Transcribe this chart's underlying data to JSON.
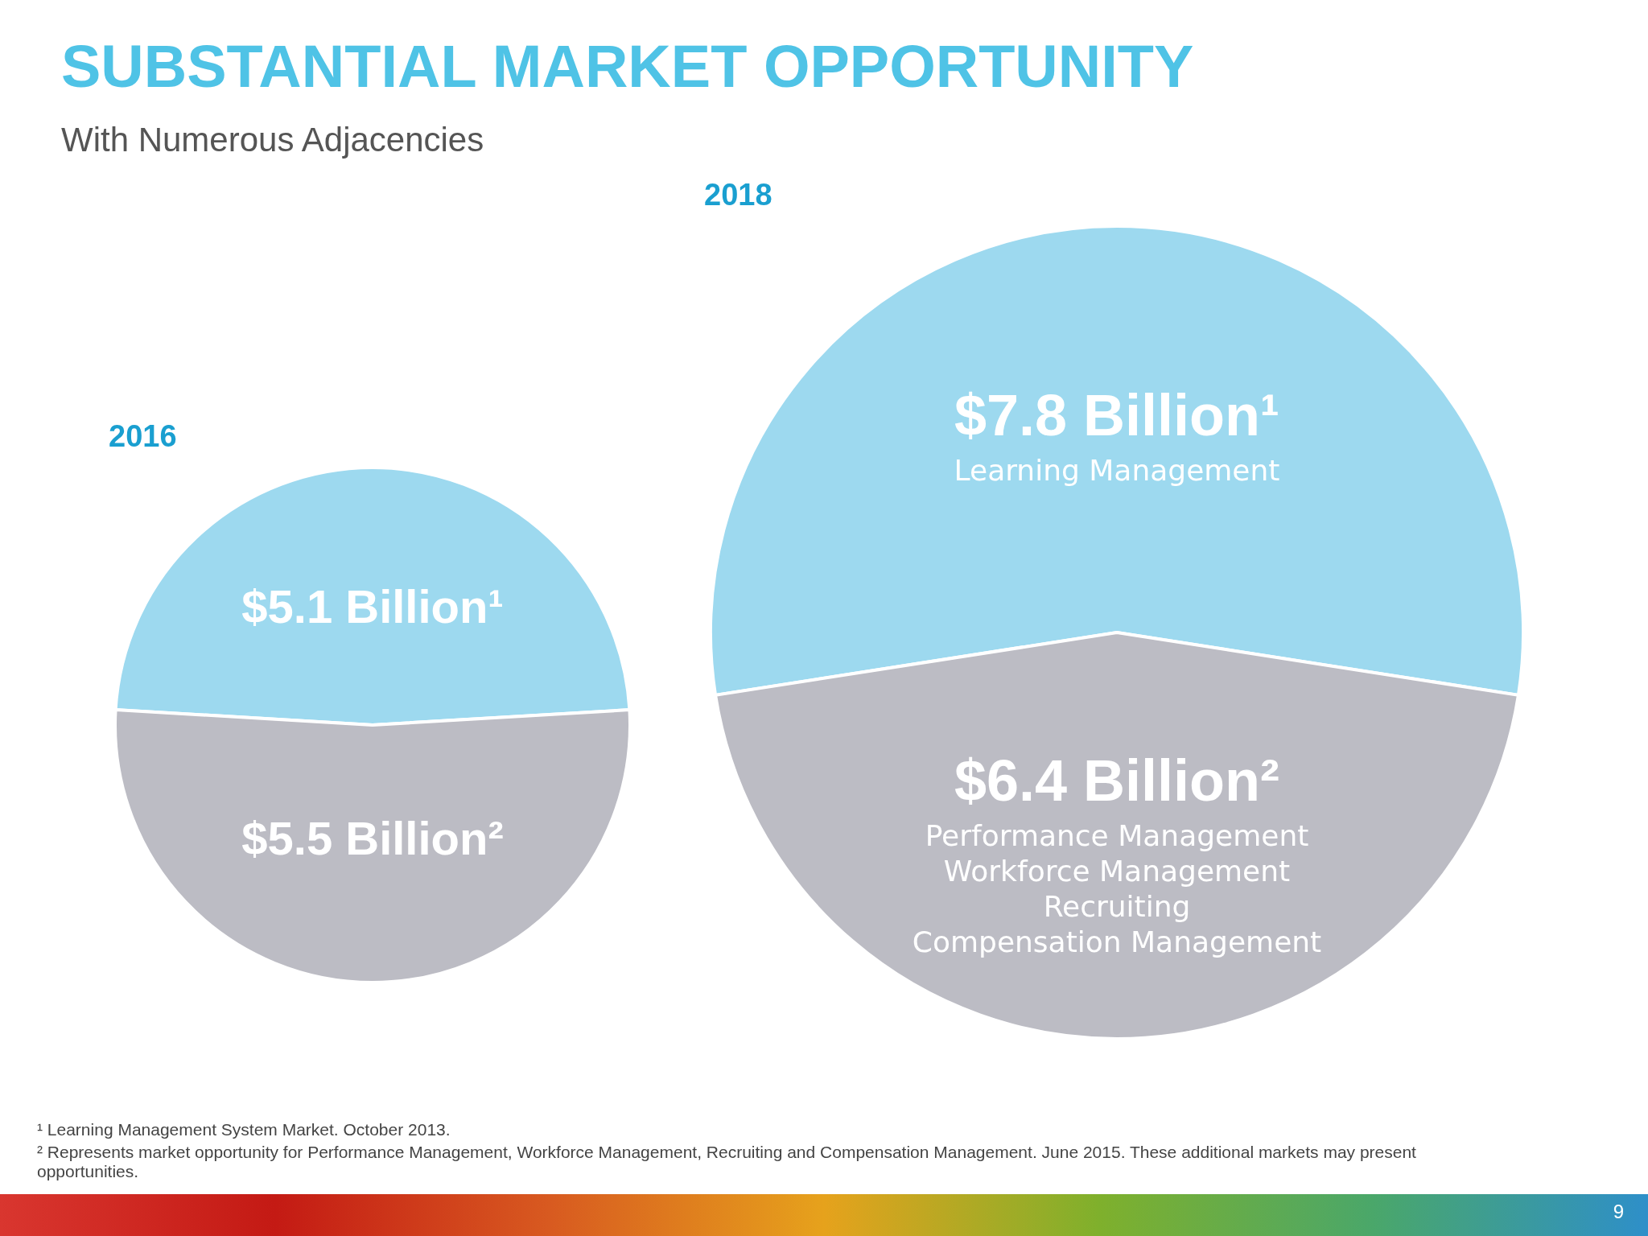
{
  "chart_data": [
    {
      "type": "other",
      "title": "SUBSTANTIAL MARKET OPPORTUNITY",
      "subtitle": "With Numerous Adjacencies",
      "annotations": [
        "¹ Learning Management System Market. October 2013.",
        "² Represents market opportunity for Performance Management, Workforce Management, Recruiting and Compensation Management. June 2015. These additional markets may present opportunities.",
        "9"
      ]
    },
    {
      "type": "pie",
      "title": "2016",
      "categories": [
        null,
        null
      ],
      "values": [
        5.1,
        5.5
      ],
      "colors": [
        "#9dd9ef",
        "#bcbcc4"
      ],
      "value_labels": [
        "$5.1 Billion¹",
        "$5.5 Billion²"
      ]
    },
    {
      "type": "pie",
      "title": "2018",
      "categories": [
        "Learning Management",
        "Performance Management\nWorkforce Management\nRecruiting\nCompensation Management"
      ],
      "values": [
        7.8,
        6.4
      ],
      "colors": [
        "#9dd9ef",
        "#bcbcc4"
      ],
      "value_labels": [
        "$7.8 Billion¹",
        "$6.4 Billion²"
      ]
    }
  ]
}
